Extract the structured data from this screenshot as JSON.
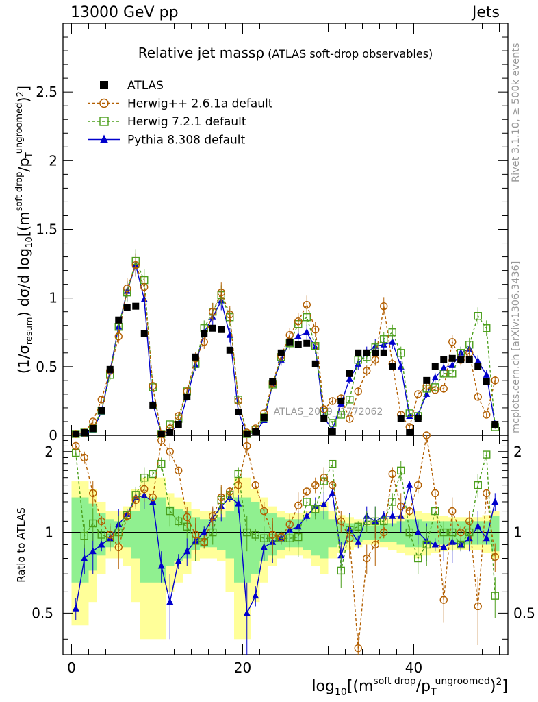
{
  "header": {
    "left": "13000 GeV pp",
    "right": "Jets"
  },
  "side_labels": {
    "rivet": "Rivet 3.1.10, ≥ 500k events",
    "mcplots": "mcplots.cern.ch [arXiv:1306.3436]"
  },
  "chart_data": {
    "type": "line",
    "title": "Relative jet massρ",
    "subtitle": "(ATLAS soft-drop observables)",
    "watermark": "ATLAS_2019_I1772062",
    "ylabel": "(1/σresum) dσ/d log10[(msoft drop/pTungroomed)2]",
    "xlabel": "log10[(msoft drop/pTungroomed)2]",
    "xlim": [
      -1,
      51
    ],
    "ylim": [
      0,
      3
    ],
    "xticks": [
      0,
      20,
      40
    ],
    "yticks": [
      0,
      0.5,
      1,
      1.5,
      2,
      2.5
    ],
    "ytick_labels": [
      "0",
      "0.5",
      "1",
      "1.5",
      "2",
      "2.5"
    ],
    "ratio_ylabel": "Ratio to ATLAS",
    "ratio_ylim": [
      0.35,
      2.3
    ],
    "ratio_yticks": [
      0.5,
      1,
      2
    ],
    "ratio_ytick_labels": [
      "0.5",
      "1",
      "2"
    ],
    "colors": {
      "atlas": "#000000",
      "herwigpp": "#b25e00",
      "herwig7": "#4a9e1a",
      "pythia": "#0000cc",
      "band_green": "#90f090",
      "band_yellow": "#ffff99"
    },
    "x": [
      0.5,
      1.5,
      2.5,
      3.5,
      4.5,
      5.5,
      6.5,
      7.5,
      8.5,
      9.5,
      10.5,
      11.5,
      12.5,
      13.5,
      14.5,
      15.5,
      16.5,
      17.5,
      18.5,
      19.5,
      20.5,
      21.5,
      22.5,
      23.5,
      24.5,
      25.5,
      26.5,
      27.5,
      28.5,
      29.5,
      30.5,
      31.5,
      32.5,
      33.5,
      34.5,
      35.5,
      36.5,
      37.5,
      38.5,
      39.5,
      40.5,
      41.5,
      42.5,
      43.5,
      44.5,
      45.5,
      46.5,
      47.5,
      48.5,
      49.5
    ],
    "legend": [
      "ATLAS",
      "Herwig++ 2.6.1a default",
      "Herwig 7.2.1 default",
      "Pythia 8.308 default"
    ],
    "series": [
      {
        "name": "ATLAS",
        "marker": "square",
        "values": [
          0.01,
          0.02,
          0.05,
          0.18,
          0.48,
          0.84,
          0.93,
          0.94,
          0.74,
          0.22,
          0.01,
          0.02,
          0.08,
          0.28,
          0.57,
          0.74,
          0.78,
          0.77,
          0.62,
          0.17,
          0.01,
          0.03,
          0.13,
          0.39,
          0.6,
          0.68,
          0.66,
          0.67,
          0.52,
          0.12,
          0.03,
          0.25,
          0.45,
          0.6,
          0.6,
          0.6,
          0.6,
          0.5,
          0.12,
          0.02,
          0.12,
          0.4,
          0.5,
          0.55,
          0.56,
          0.55,
          0.55,
          0.5,
          0.39,
          0.08
        ],
        "ratio": [
          1.0,
          1.0,
          1.0,
          1.0,
          1.0,
          1.0,
          1.0,
          1.0,
          1.0,
          1.0,
          1.0,
          1.0,
          1.0,
          1.0,
          1.0,
          1.0,
          1.0,
          1.0,
          1.0,
          1.0,
          1.0,
          1.0,
          1.0,
          1.0,
          1.0,
          1.0,
          1.0,
          1.0,
          1.0,
          1.0,
          1.0,
          1.0,
          1.0,
          1.0,
          1.0,
          1.0,
          1.0,
          1.0,
          1.0,
          1.0,
          1.0,
          1.0,
          1.0,
          1.0,
          1.0,
          1.0,
          1.0,
          1.0,
          1.0,
          1.0
        ],
        "band_inner": [
          0.35,
          0.35,
          0.28,
          0.18,
          0.12,
          0.1,
          0.12,
          0.2,
          0.35,
          0.35,
          0.35,
          0.25,
          0.22,
          0.2,
          0.14,
          0.12,
          0.12,
          0.14,
          0.2,
          0.35,
          0.35,
          0.3,
          0.22,
          0.18,
          0.14,
          0.12,
          0.12,
          0.14,
          0.18,
          0.2,
          0.12,
          0.1,
          0.08,
          0.08,
          0.06,
          0.06,
          0.08,
          0.08,
          0.1,
          0.12,
          0.12,
          0.1,
          0.1,
          0.1,
          0.1,
          0.1,
          0.1,
          0.1,
          0.1,
          0.15
        ],
        "band_outer": [
          0.55,
          0.55,
          0.45,
          0.3,
          0.2,
          0.2,
          0.25,
          0.45,
          0.6,
          0.6,
          0.6,
          0.4,
          0.35,
          0.3,
          0.22,
          0.2,
          0.2,
          0.22,
          0.4,
          0.6,
          0.6,
          0.45,
          0.35,
          0.25,
          0.2,
          0.18,
          0.18,
          0.2,
          0.25,
          0.3,
          0.2,
          0.16,
          0.14,
          0.12,
          0.1,
          0.1,
          0.12,
          0.14,
          0.16,
          0.18,
          0.2,
          0.18,
          0.16,
          0.15,
          0.14,
          0.14,
          0.14,
          0.14,
          0.16,
          0.2
        ]
      },
      {
        "name": "Herwig++ 2.6.1a default",
        "marker": "circle-open",
        "dash": "4,3",
        "values": [
          0.01,
          0.02,
          0.1,
          0.26,
          0.47,
          0.72,
          1.07,
          1.24,
          1.08,
          0.36,
          0.01,
          0.05,
          0.14,
          0.32,
          0.56,
          0.68,
          0.9,
          1.04,
          0.88,
          0.25,
          0.02,
          0.05,
          0.16,
          0.38,
          0.58,
          0.73,
          0.83,
          0.95,
          0.77,
          0.19,
          0.25,
          0.27,
          0.12,
          0.32,
          0.47,
          0.55,
          0.94,
          0.52,
          0.15,
          0.06,
          0.3,
          0.36,
          0.33,
          0.34,
          0.68,
          0.55,
          0.6,
          0.28,
          0.15,
          0.4
        ],
        "ratio": [
          2.1,
          1.9,
          1.4,
          1.1,
          0.98,
          0.88,
          1.15,
          1.32,
          1.45,
          1.35,
          2.2,
          2.0,
          1.7,
          1.14,
          0.98,
          0.92,
          1.15,
          1.35,
          1.42,
          1.5,
          2.1,
          1.5,
          1.2,
          0.98,
          0.96,
          1.07,
          1.26,
          1.42,
          1.5,
          1.6,
          1.5,
          1.1,
          0.95,
          0.37,
          0.8,
          0.9,
          1.0,
          1.65,
          1.25,
          1.2,
          1.5,
          2.3,
          1.4,
          0.56,
          1.2,
          1.0,
          1.1,
          0.53,
          1.4,
          0.81
        ]
      },
      {
        "name": "Herwig 7.2.1 default",
        "marker": "square-open",
        "dash": "4,3",
        "values": [
          0.01,
          0.02,
          0.05,
          0.18,
          0.44,
          0.79,
          1.04,
          1.27,
          1.13,
          0.35,
          0.01,
          0.08,
          0.12,
          0.32,
          0.52,
          0.78,
          0.9,
          1.02,
          0.86,
          0.26,
          0.01,
          0.04,
          0.13,
          0.37,
          0.57,
          0.67,
          0.81,
          0.86,
          0.65,
          0.17,
          0.09,
          0.15,
          0.26,
          0.55,
          0.57,
          0.64,
          0.7,
          0.75,
          0.6,
          0.16,
          0.14,
          0.34,
          0.35,
          0.45,
          0.45,
          0.6,
          0.66,
          0.87,
          0.78,
          0.06
        ],
        "ratio": [
          1.98,
          0.97,
          1.08,
          0.98,
          0.95,
          1.0,
          1.16,
          1.38,
          1.6,
          1.65,
          1.8,
          1.2,
          1.1,
          1.05,
          0.93,
          0.92,
          1.0,
          1.32,
          1.38,
          1.65,
          1.0,
          0.98,
          0.95,
          0.95,
          0.95,
          0.95,
          0.96,
          1.3,
          1.22,
          1.55,
          1.8,
          0.72,
          1.02,
          1.05,
          1.1,
          1.1,
          1.1,
          1.3,
          1.7,
          1.0,
          0.8,
          0.9,
          1.2,
          1.0,
          1.0,
          0.9,
          1.0,
          1.5,
          1.95,
          0.58
        ]
      },
      {
        "name": "Pythia 8.308 default",
        "marker": "triangle",
        "dash": "",
        "values": [
          0.01,
          0.01,
          0.04,
          0.17,
          0.47,
          0.79,
          1.05,
          1.24,
          0.99,
          0.23,
          0.01,
          0.03,
          0.07,
          0.28,
          0.51,
          0.75,
          0.86,
          0.98,
          0.73,
          0.17,
          0.01,
          0.02,
          0.11,
          0.37,
          0.55,
          0.68,
          0.72,
          0.75,
          0.64,
          0.13,
          0.04,
          0.23,
          0.41,
          0.52,
          0.6,
          0.65,
          0.66,
          0.68,
          0.5,
          0.14,
          0.15,
          0.3,
          0.42,
          0.49,
          0.51,
          0.6,
          0.63,
          0.54,
          0.44,
          0.08
        ],
        "ratio": [
          0.52,
          0.8,
          0.85,
          0.9,
          0.95,
          1.07,
          1.17,
          1.35,
          1.37,
          1.3,
          0.75,
          0.55,
          0.78,
          0.85,
          0.93,
          1.0,
          1.13,
          1.25,
          1.35,
          1.28,
          0.5,
          0.58,
          0.88,
          0.92,
          0.95,
          1.02,
          1.05,
          1.15,
          1.25,
          1.27,
          1.4,
          0.82,
          1.03,
          0.92,
          1.15,
          1.1,
          1.15,
          1.15,
          1.15,
          1.5,
          1.0,
          0.93,
          0.9,
          0.88,
          0.92,
          0.9,
          0.95,
          1.05,
          0.95,
          1.3
        ]
      }
    ]
  }
}
